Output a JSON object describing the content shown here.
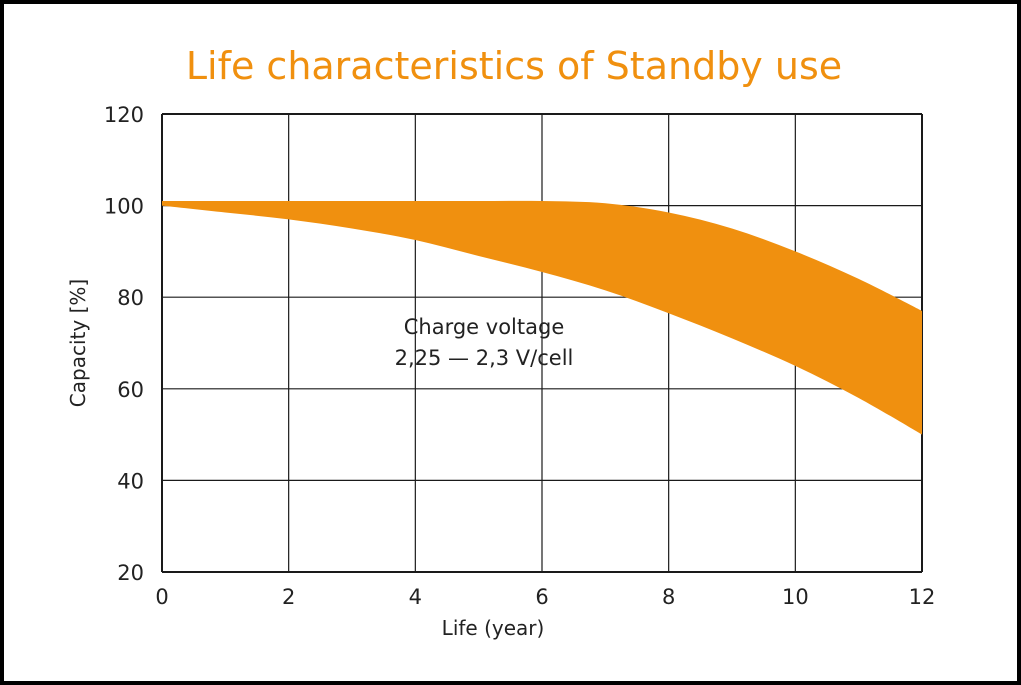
{
  "chart_data": {
    "type": "area",
    "title": "Life characteristics of Standby use",
    "xlabel": "Life (year)",
    "ylabel": "Capacity [%]",
    "xlim": [
      0,
      12
    ],
    "ylim": [
      20,
      120
    ],
    "x_ticks": [
      "0",
      "2",
      "4",
      "6",
      "8",
      "10",
      "12"
    ],
    "y_ticks": [
      "20",
      "40",
      "60",
      "80",
      "100",
      "120"
    ],
    "grid": true,
    "band_color": "#f0900f",
    "title_color": "#f0900f",
    "annotation_lines": [
      "Charge voltage",
      "2,25 — 2,3 V/cell"
    ],
    "band": {
      "x": [
        0,
        1,
        2,
        3,
        4,
        5,
        6,
        7,
        8,
        9,
        10,
        11,
        12
      ],
      "upper": [
        101,
        101,
        101,
        101,
        101,
        101,
        101,
        100.5,
        98.5,
        95,
        90,
        84,
        77
      ],
      "lower": [
        100,
        98.5,
        97,
        95,
        92.5,
        89,
        85.5,
        81.5,
        76.5,
        71,
        65,
        58,
        50
      ]
    }
  }
}
